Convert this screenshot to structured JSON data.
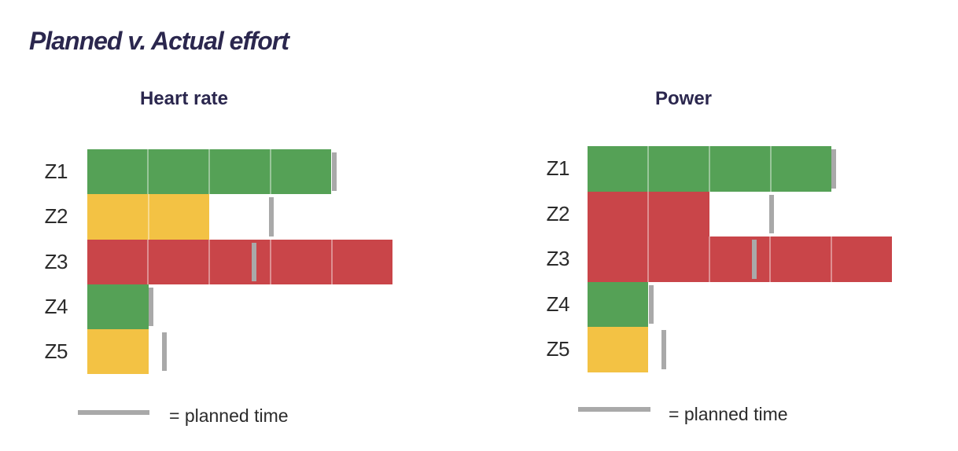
{
  "page": {
    "title": "Planned v. Actual effort"
  },
  "colors": {
    "green": "#55a156",
    "yellow": "#f3c244",
    "red": "#c94549",
    "planned_gray": "#a9a9a9",
    "heading_navy": "#2b274e"
  },
  "chart_data": [
    {
      "type": "bar",
      "orientation": "horizontal",
      "title": "Heart rate",
      "categories": [
        "Z1",
        "Z2",
        "Z3",
        "Z4",
        "Z5"
      ],
      "series": [
        {
          "name": "actual",
          "values": [
            4,
            2,
            5,
            1,
            1
          ]
        },
        {
          "name": "planned",
          "values": [
            4.05,
            3.02,
            2.74,
            1.05,
            1.26
          ]
        }
      ],
      "zone_colors": [
        "green",
        "yellow",
        "red",
        "green",
        "yellow"
      ],
      "legend": "= planned time",
      "axis": {
        "numeric_labels_visible": false,
        "gridlines": false,
        "unit_note": "values in bar-segment units; no numeric scale shown"
      }
    },
    {
      "type": "bar",
      "orientation": "horizontal",
      "title": "Power",
      "categories": [
        "Z1",
        "Z2",
        "Z3",
        "Z4",
        "Z5"
      ],
      "series": [
        {
          "name": "actual",
          "values": [
            4,
            2,
            5,
            1,
            1
          ]
        },
        {
          "name": "planned",
          "values": [
            4.05,
            3.02,
            2.74,
            1.05,
            1.25
          ]
        }
      ],
      "zone_colors": [
        "green",
        "red",
        "red",
        "green",
        "yellow"
      ],
      "legend": "= planned time",
      "axis": {
        "numeric_labels_visible": false,
        "gridlines": false,
        "unit_note": "values in bar-segment units; no numeric scale shown"
      }
    }
  ]
}
